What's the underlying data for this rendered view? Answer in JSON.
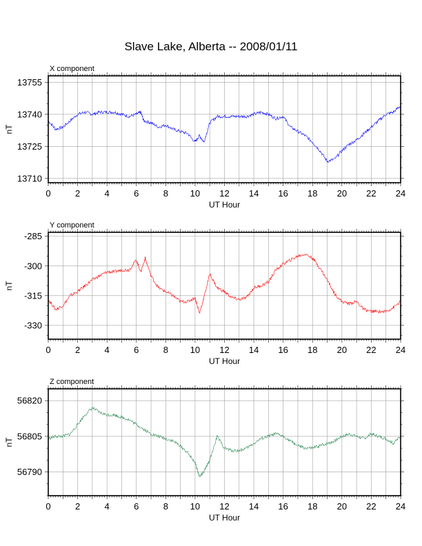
{
  "title": "Slave Lake, Alberta -- 2008/01/11",
  "chart_data": [
    {
      "type": "line",
      "panel_label": "X component",
      "xlabel": "UT Hour",
      "ylabel": "nT",
      "xlim": [
        0,
        24
      ],
      "ylim": [
        13708,
        13758
      ],
      "xticks": [
        0,
        2,
        4,
        6,
        8,
        10,
        12,
        14,
        16,
        18,
        20,
        22,
        24
      ],
      "yticks": [
        13710,
        13725,
        13740,
        13755
      ],
      "grid": true,
      "color": "#0000ff",
      "series": [
        {
          "x": [
            0,
            0.5,
            1,
            1.5,
            2,
            2.5,
            3,
            3.5,
            4,
            4.5,
            5,
            5.5,
            6,
            6.3,
            6.5,
            7,
            7.5,
            8,
            8.5,
            9,
            9.5,
            10,
            10.3,
            10.6,
            11,
            11.5,
            12,
            12.5,
            13,
            13.5,
            14,
            14.5,
            15,
            15.5,
            16,
            16.5,
            17,
            17.5,
            18,
            18.5,
            19,
            19.5,
            20,
            20.5,
            21,
            21.5,
            22,
            22.5,
            23,
            23.5,
            24
          ],
          "y": [
            13737,
            13733,
            13734,
            13737,
            13740,
            13741,
            13740,
            13741,
            13741,
            13741,
            13740,
            13739,
            13740,
            13741,
            13737,
            13736,
            13734,
            13735,
            13733,
            13732,
            13731,
            13727,
            13730,
            13727,
            13736,
            13739,
            13739,
            13739,
            13739,
            13739,
            13740,
            13741,
            13740,
            13738,
            13739,
            13734,
            13732,
            13730,
            13727,
            13723,
            13718,
            13719,
            13723,
            13726,
            13728,
            13731,
            13734,
            13737,
            13740,
            13741,
            13744
          ]
        }
      ]
    },
    {
      "type": "line",
      "panel_label": "Y component",
      "xlabel": "UT Hour",
      "ylabel": "nT",
      "xlim": [
        0,
        24
      ],
      "ylim": [
        -337,
        -283
      ],
      "xticks": [
        0,
        2,
        4,
        6,
        8,
        10,
        12,
        14,
        16,
        18,
        20,
        22,
        24
      ],
      "yticks": [
        -285,
        -300,
        -315,
        -330
      ],
      "grid": true,
      "color": "#ff0000",
      "series": [
        {
          "x": [
            0,
            0.5,
            1,
            1.5,
            2,
            2.5,
            3,
            3.5,
            4,
            4.5,
            5,
            5.5,
            6,
            6.3,
            6.6,
            7,
            7.5,
            8,
            8.5,
            9,
            9.5,
            10,
            10.3,
            10.6,
            11,
            11.5,
            12,
            12.5,
            13,
            13.5,
            14,
            14.5,
            15,
            15.5,
            16,
            16.5,
            17,
            17.5,
            18,
            18.5,
            19,
            19.5,
            20,
            20.5,
            21,
            21.5,
            22,
            22.5,
            23,
            23.5,
            24
          ],
          "y": [
            -317,
            -322,
            -320,
            -315,
            -313,
            -310,
            -307,
            -305,
            -303,
            -303,
            -302,
            -302,
            -297,
            -303,
            -296,
            -305,
            -311,
            -313,
            -315,
            -318,
            -318,
            -316,
            -324,
            -316,
            -304,
            -311,
            -313,
            -316,
            -317,
            -316,
            -311,
            -310,
            -308,
            -302,
            -299,
            -297,
            -295,
            -294,
            -296,
            -301,
            -307,
            -314,
            -318,
            -319,
            -318,
            -322,
            -323,
            -323,
            -323,
            -321,
            -318
          ]
        }
      ]
    },
    {
      "type": "line",
      "panel_label": "Z component",
      "xlabel": "UT Hour",
      "ylabel": "nT",
      "xlim": [
        0,
        24
      ],
      "ylim": [
        56780,
        56825
      ],
      "xticks": [
        0,
        2,
        4,
        6,
        8,
        10,
        12,
        14,
        16,
        18,
        20,
        22,
        24
      ],
      "yticks": [
        56790,
        56805,
        56820
      ],
      "grid": true,
      "color": "#2e8b57",
      "series": [
        {
          "x": [
            0,
            0.5,
            1,
            1.5,
            2,
            2.5,
            3,
            3.5,
            4,
            4.5,
            5,
            5.5,
            6,
            6.5,
            7,
            7.5,
            8,
            8.5,
            9,
            9.5,
            10,
            10.3,
            10.6,
            11,
            11.5,
            12,
            12.5,
            13,
            13.5,
            14,
            14.5,
            15,
            15.5,
            16,
            16.5,
            17,
            17.5,
            18,
            18.5,
            19,
            19.5,
            20,
            20.5,
            21,
            21.5,
            22,
            22.5,
            23,
            23.5,
            24
          ],
          "y": [
            56804,
            56805,
            56805,
            56806,
            56810,
            56814,
            56817,
            56815,
            56814,
            56814,
            56813,
            56812,
            56810,
            56808,
            56806,
            56805,
            56804,
            56803,
            56801,
            56798,
            56794,
            56788,
            56790,
            56795,
            56805,
            56800,
            56799,
            56799,
            56800,
            56802,
            56804,
            56805,
            56806,
            56805,
            56803,
            56801,
            56800,
            56800,
            56801,
            56802,
            56803,
            56805,
            56806,
            56805,
            56804,
            56806,
            56805,
            56804,
            56802,
            56805
          ]
        }
      ]
    }
  ]
}
